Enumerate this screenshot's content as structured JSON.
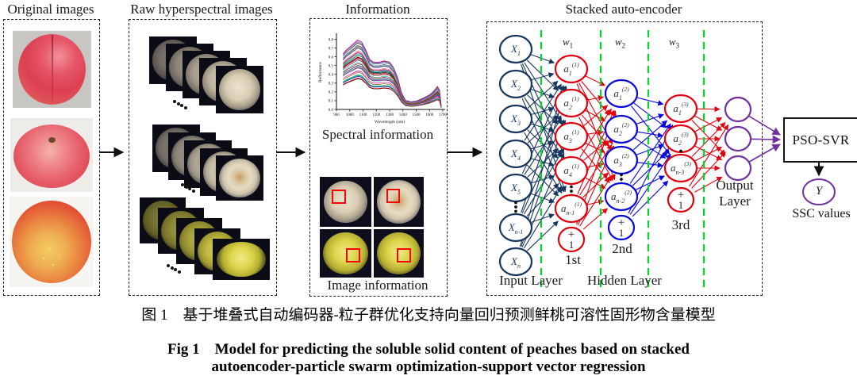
{
  "headers": {
    "original": "Original images",
    "raw": "Raw hyperspectral images",
    "information": "Information",
    "autoencoder": "Stacked auto-encoder"
  },
  "information": {
    "spectral_label": "Spectral information",
    "image_label": "Image information"
  },
  "chart_data": {
    "type": "line",
    "title": "",
    "xlabel": "Wavelength (nm)",
    "ylabel": "Reflectance",
    "x_ticks": [
      900,
      1000,
      1100,
      1200,
      1300,
      1400,
      1500,
      1600,
      1700
    ],
    "y_ticks": [
      0.0,
      0.1,
      0.2,
      0.3,
      0.4,
      0.5,
      0.6,
      0.7,
      0.8
    ],
    "xlim": [
      900,
      1700
    ],
    "ylim": [
      0,
      0.85
    ],
    "n_curves": 36,
    "amplitude_range": [
      0.36,
      0.8
    ],
    "base_curve": [
      [
        950,
        0.8
      ],
      [
        975,
        0.86
      ],
      [
        1000,
        0.9
      ],
      [
        1030,
        0.95
      ],
      [
        1060,
        1.0
      ],
      [
        1090,
        0.97
      ],
      [
        1120,
        0.86
      ],
      [
        1150,
        0.72
      ],
      [
        1180,
        0.68
      ],
      [
        1220,
        0.68
      ],
      [
        1260,
        0.7
      ],
      [
        1300,
        0.68
      ],
      [
        1330,
        0.6
      ],
      [
        1360,
        0.46
      ],
      [
        1390,
        0.24
      ],
      [
        1420,
        0.13
      ],
      [
        1460,
        0.11
      ],
      [
        1500,
        0.12
      ],
      [
        1550,
        0.16
      ],
      [
        1600,
        0.21
      ],
      [
        1630,
        0.26
      ],
      [
        1660,
        0.33
      ],
      [
        1675,
        0.28
      ],
      [
        1688,
        0.06
      ]
    ],
    "palette": [
      "#000000",
      "#e00000",
      "#0000d0",
      "#008000",
      "#00b0b0",
      "#d000d0",
      "#806000",
      "#ff69b4",
      "#606060",
      "#7030a0",
      "#ff8c00",
      "#2e8b57",
      "#4169e1",
      "#8b0000",
      "#20b2aa",
      "#9932cc",
      "#556b2f",
      "#c71585"
    ]
  },
  "autoencoder": {
    "weights": [
      {
        "main": "w",
        "sub": "1"
      },
      {
        "main": "w",
        "sub": "2"
      },
      {
        "main": "w",
        "sub": "3"
      }
    ],
    "tags": [
      "1st",
      "2nd",
      "3rd"
    ],
    "input_layer_label": "Input Layer",
    "hidden_layer_label": "Hidden Layer",
    "output_layer_label_1": "Output",
    "output_layer_label_2": "Layer",
    "bias_plus": "+",
    "bias_one": "1",
    "layers": [
      {
        "name": "input",
        "color": "#17365d",
        "nodes": [
          {
            "t": "X",
            "sub": "1"
          },
          {
            "t": "X",
            "sub": "2"
          },
          {
            "t": "X",
            "sub": "3"
          },
          {
            "t": "X",
            "sub": "4"
          },
          {
            "t": "X",
            "sub": "5"
          },
          {
            "dots": true
          },
          {
            "t": "X",
            "sub": "n-1"
          },
          {
            "t": "X",
            "sub": "n"
          }
        ]
      },
      {
        "name": "hidden1",
        "color": "#e3000e",
        "nodes": [
          {
            "t": "a",
            "sub": "1",
            "sup": "(1)"
          },
          {
            "t": "a",
            "sub": "2",
            "sup": "(1)"
          },
          {
            "t": "a",
            "sub": "3",
            "sup": "(1)"
          },
          {
            "t": "a",
            "sub": "4",
            "sup": "(1)"
          },
          {
            "dots": true
          },
          {
            "t": "a",
            "sub": "n-1",
            "sup": "(1)"
          },
          {
            "bias": true
          }
        ]
      },
      {
        "name": "hidden2",
        "color": "#0808dc",
        "nodes": [
          {
            "t": "a",
            "sub": "1",
            "sup": "(2)"
          },
          {
            "t": "a",
            "sub": "2",
            "sup": "(2)"
          },
          {
            "t": "a",
            "sub": "3",
            "sup": "(2)"
          },
          {
            "dots": true
          },
          {
            "t": "a",
            "sub": "n-2",
            "sup": "(2)"
          },
          {
            "bias": true
          }
        ]
      },
      {
        "name": "hidden3",
        "color": "#e3000e",
        "nodes": [
          {
            "t": "a",
            "sub": "1",
            "sup": "(3)"
          },
          {
            "t": "a",
            "sub": "2",
            "sup": "(3)"
          },
          {
            "dots": true
          },
          {
            "t": "a",
            "sub": "n-3",
            "sup": "(3)"
          },
          {
            "bias": true
          }
        ]
      },
      {
        "name": "output",
        "color": "#7030a0",
        "nodes": [
          {},
          {},
          {}
        ]
      }
    ],
    "separator_color": "#00d42a"
  },
  "psosvr": {
    "label": "PSO-SVR",
    "y_label": "Y",
    "ssc_label": "SSC values"
  },
  "caption": {
    "zh": "图 1　基于堆叠式自动编码器-粒子群优化支持向量回归预测鲜桃可溶性固形物含量模型",
    "en1": "Fig 1　Model for predicting the soluble solid content of peaches based on stacked",
    "en2": "autoencoder-particle swarm optimization-support vector regression"
  },
  "colors": {
    "navy": "#17365d",
    "red": "#e3000e",
    "blue": "#0808dc",
    "purple": "#7030a0",
    "green": "#00d42a",
    "roi_red": "#ff0000",
    "black": "#1a1a1a"
  }
}
